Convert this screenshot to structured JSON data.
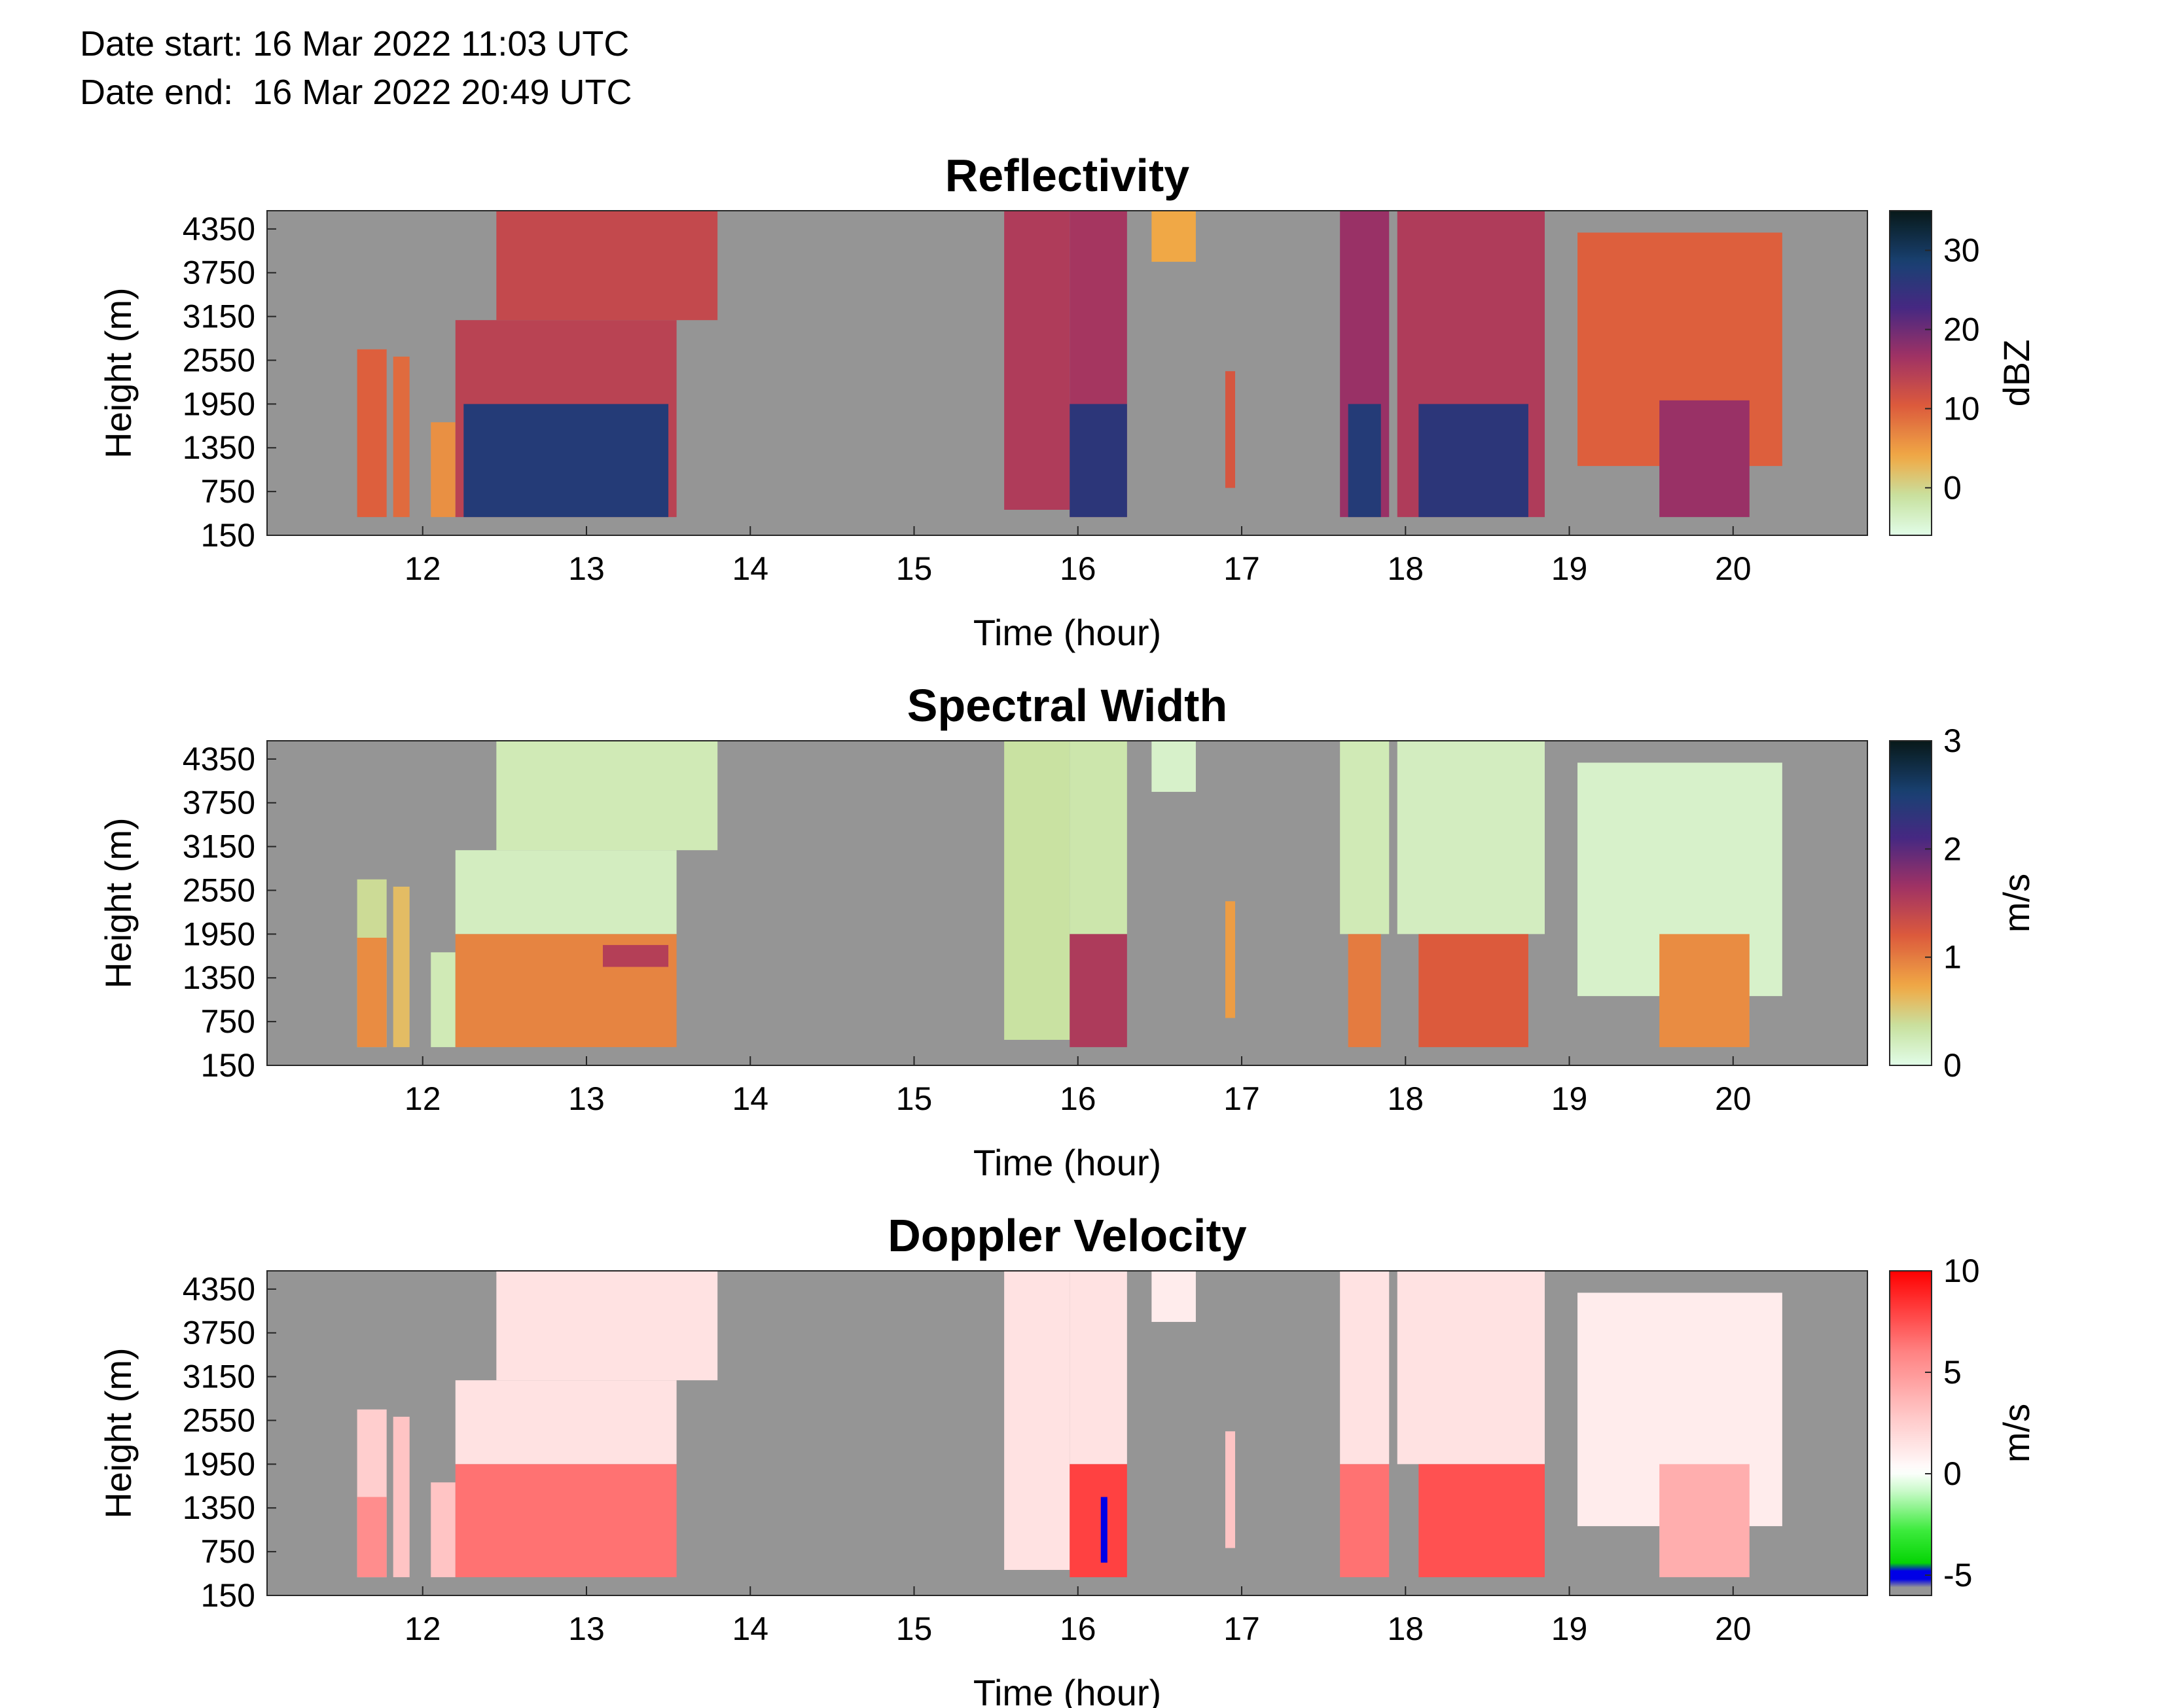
{
  "header": {
    "date_start": "Date start: 16 Mar 2022 11:03 UTC",
    "date_end": "Date end:  16 Mar 2022 20:49 UTC"
  },
  "colors": {
    "background_fill": "#959595",
    "axis": "#262626"
  },
  "chart_data": [
    {
      "type": "heatmap",
      "title": "Reflectivity",
      "xlabel": "Time (hour)",
      "ylabel": "Height (m)",
      "xlim": [
        11.05,
        20.82
      ],
      "ylim": [
        150,
        4600
      ],
      "xticks": [
        12,
        13,
        14,
        15,
        16,
        17,
        18,
        19,
        20
      ],
      "yticks": [
        150,
        750,
        1350,
        1950,
        2550,
        3150,
        3750,
        4350
      ],
      "colorbar": {
        "label": "dBZ",
        "range": [
          -6,
          35
        ],
        "ticks": [
          0,
          10,
          20,
          30
        ],
        "colormap": "thermal-reversed"
      },
      "echo_regions": [
        {
          "t": [
            11.6,
            11.78
          ],
          "h": [
            400,
            2700
          ],
          "value": 10
        },
        {
          "t": [
            11.82,
            11.92
          ],
          "h": [
            400,
            2600
          ],
          "value": 9
        },
        {
          "t": [
            12.05,
            12.2
          ],
          "h": [
            400,
            1700
          ],
          "value": 6
        },
        {
          "t": [
            12.2,
            13.55
          ],
          "h": [
            400,
            3100
          ],
          "value": 14
        },
        {
          "t": [
            12.45,
            13.8
          ],
          "h": [
            3100,
            4600
          ],
          "value": 13
        },
        {
          "t": [
            12.25,
            13.5
          ],
          "h": [
            400,
            1950
          ],
          "value": 27
        },
        {
          "t": [
            15.55,
            15.95
          ],
          "h": [
            500,
            4600
          ],
          "value": 15
        },
        {
          "t": [
            15.95,
            16.3
          ],
          "h": [
            400,
            4600
          ],
          "value": 16
        },
        {
          "t": [
            15.95,
            16.3
          ],
          "h": [
            400,
            1950
          ],
          "value": 26
        },
        {
          "t": [
            16.45,
            16.72
          ],
          "h": [
            3900,
            4600
          ],
          "value": 4
        },
        {
          "t": [
            16.9,
            16.96
          ],
          "h": [
            800,
            2400
          ],
          "value": 11
        },
        {
          "t": [
            17.6,
            17.9
          ],
          "h": [
            400,
            4600
          ],
          "value": 17
        },
        {
          "t": [
            17.65,
            17.85
          ],
          "h": [
            400,
            1950
          ],
          "value": 27
        },
        {
          "t": [
            17.95,
            18.85
          ],
          "h": [
            400,
            4600
          ],
          "value": 15
        },
        {
          "t": [
            18.08,
            18.75
          ],
          "h": [
            400,
            1950
          ],
          "value": 26
        },
        {
          "t": [
            19.05,
            20.3
          ],
          "h": [
            1100,
            4300
          ],
          "value": 10
        },
        {
          "t": [
            19.55,
            20.1
          ],
          "h": [
            400,
            2000
          ],
          "value": 17
        }
      ]
    },
    {
      "type": "heatmap",
      "title": "Spectral Width",
      "xlabel": "Time (hour)",
      "ylabel": "Height (m)",
      "xlim": [
        11.05,
        20.82
      ],
      "ylim": [
        150,
        4600
      ],
      "xticks": [
        12,
        13,
        14,
        15,
        16,
        17,
        18,
        19,
        20
      ],
      "yticks": [
        150,
        750,
        1350,
        1950,
        2550,
        3150,
        3750,
        4350
      ],
      "colorbar": {
        "label": "m/s",
        "range": [
          0,
          3
        ],
        "ticks": [
          0,
          1,
          2,
          3
        ],
        "colormap": "thermal-reversed"
      },
      "echo_regions": [
        {
          "t": [
            11.6,
            11.78
          ],
          "h": [
            400,
            2700
          ],
          "value": 0.4
        },
        {
          "t": [
            11.6,
            11.78
          ],
          "h": [
            400,
            1900
          ],
          "value": 0.9
        },
        {
          "t": [
            11.82,
            11.92
          ],
          "h": [
            400,
            2600
          ],
          "value": 0.6
        },
        {
          "t": [
            12.05,
            12.2
          ],
          "h": [
            400,
            1700
          ],
          "value": 0.25
        },
        {
          "t": [
            12.2,
            13.55
          ],
          "h": [
            1950,
            3100
          ],
          "value": 0.2
        },
        {
          "t": [
            12.45,
            13.8
          ],
          "h": [
            3100,
            4600
          ],
          "value": 0.25
        },
        {
          "t": [
            12.2,
            13.55
          ],
          "h": [
            400,
            1950
          ],
          "value": 0.95
        },
        {
          "t": [
            13.1,
            13.5
          ],
          "h": [
            1500,
            1800
          ],
          "value": 1.5
        },
        {
          "t": [
            15.55,
            15.95
          ],
          "h": [
            500,
            4600
          ],
          "value": 0.35
        },
        {
          "t": [
            15.95,
            16.3
          ],
          "h": [
            1950,
            4600
          ],
          "value": 0.3
        },
        {
          "t": [
            15.95,
            16.3
          ],
          "h": [
            400,
            1950
          ],
          "value": 1.55
        },
        {
          "t": [
            16.45,
            16.72
          ],
          "h": [
            3900,
            4600
          ],
          "value": 0.15
        },
        {
          "t": [
            16.9,
            16.96
          ],
          "h": [
            800,
            2400
          ],
          "value": 0.8
        },
        {
          "t": [
            17.6,
            17.9
          ],
          "h": [
            1950,
            4600
          ],
          "value": 0.25
        },
        {
          "t": [
            17.65,
            17.85
          ],
          "h": [
            400,
            1950
          ],
          "value": 1.0
        },
        {
          "t": [
            17.95,
            18.85
          ],
          "h": [
            1950,
            4600
          ],
          "value": 0.2
        },
        {
          "t": [
            18.08,
            18.75
          ],
          "h": [
            400,
            1950
          ],
          "value": 1.2
        },
        {
          "t": [
            19.05,
            20.3
          ],
          "h": [
            1100,
            4300
          ],
          "value": 0.15
        },
        {
          "t": [
            19.55,
            20.1
          ],
          "h": [
            400,
            1950
          ],
          "value": 0.9
        }
      ]
    },
    {
      "type": "heatmap",
      "title": "Doppler Velocity",
      "xlabel": "Time (hour)",
      "ylabel": "Height (m)",
      "xlim": [
        11.05,
        20.82
      ],
      "ylim": [
        150,
        4600
      ],
      "xticks": [
        12,
        13,
        14,
        15,
        16,
        17,
        18,
        19,
        20
      ],
      "yticks": [
        150,
        750,
        1350,
        1950,
        2550,
        3150,
        3750,
        4350
      ],
      "colorbar": {
        "label": "m/s",
        "range": [
          -6,
          10
        ],
        "ticks": [
          -5,
          0,
          5,
          10
        ],
        "colormap": "green-white-red"
      },
      "echo_regions": [
        {
          "t": [
            11.6,
            11.78
          ],
          "h": [
            400,
            2700
          ],
          "value": 2.5
        },
        {
          "t": [
            11.6,
            11.78
          ],
          "h": [
            400,
            1500
          ],
          "value": 5.5
        },
        {
          "t": [
            11.82,
            11.92
          ],
          "h": [
            400,
            2600
          ],
          "value": 3
        },
        {
          "t": [
            12.05,
            12.2
          ],
          "h": [
            400,
            1700
          ],
          "value": 3
        },
        {
          "t": [
            12.2,
            13.55
          ],
          "h": [
            1950,
            3100
          ],
          "value": 1.5
        },
        {
          "t": [
            12.45,
            13.8
          ],
          "h": [
            3100,
            4600
          ],
          "value": 1.5
        },
        {
          "t": [
            12.2,
            13.55
          ],
          "h": [
            400,
            1950
          ],
          "value": 6.5
        },
        {
          "t": [
            15.55,
            15.95
          ],
          "h": [
            500,
            4600
          ],
          "value": 1.5
        },
        {
          "t": [
            15.95,
            16.3
          ],
          "h": [
            1950,
            4600
          ],
          "value": 1.5
        },
        {
          "t": [
            15.95,
            16.3
          ],
          "h": [
            400,
            1950
          ],
          "value": 8
        },
        {
          "t": [
            16.45,
            16.72
          ],
          "h": [
            3900,
            4600
          ],
          "value": 1
        },
        {
          "t": [
            16.9,
            16.96
          ],
          "h": [
            800,
            2400
          ],
          "value": 3
        },
        {
          "t": [
            17.6,
            17.9
          ],
          "h": [
            1950,
            4600
          ],
          "value": 1.5
        },
        {
          "t": [
            17.6,
            17.9
          ],
          "h": [
            400,
            1950
          ],
          "value": 6.5
        },
        {
          "t": [
            17.95,
            18.85
          ],
          "h": [
            1950,
            4600
          ],
          "value": 1.5
        },
        {
          "t": [
            18.08,
            18.85
          ],
          "h": [
            400,
            1950
          ],
          "value": 7.5
        },
        {
          "t": [
            19.05,
            20.3
          ],
          "h": [
            1100,
            4300
          ],
          "value": 1
        },
        {
          "t": [
            19.55,
            20.1
          ],
          "h": [
            400,
            1950
          ],
          "value": 4
        },
        {
          "t": [
            16.14,
            16.18
          ],
          "h": [
            600,
            1500
          ],
          "value": -5
        }
      ]
    }
  ]
}
